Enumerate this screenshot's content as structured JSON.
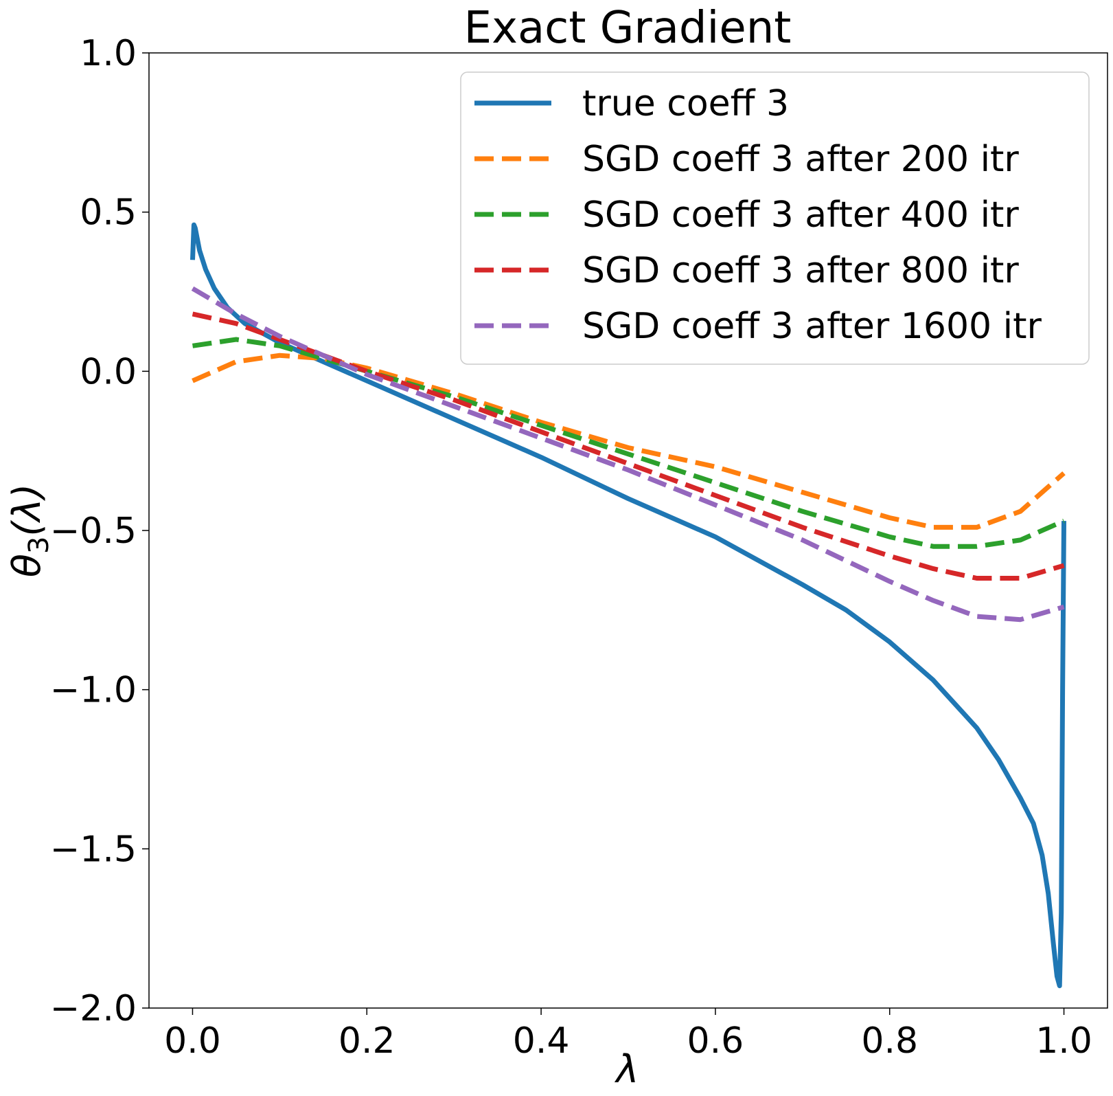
{
  "chart_data": {
    "type": "line",
    "title": "Exact Gradient",
    "xlabel": "λ",
    "ylabel": "θ3(λ)",
    "ylabel_main": "θ",
    "ylabel_sub": "3",
    "ylabel_arg": "(λ)",
    "xlim": [
      -0.05,
      1.05
    ],
    "ylim": [
      -2.0,
      1.0
    ],
    "xticks": [
      0.0,
      0.2,
      0.4,
      0.6,
      0.8,
      1.0
    ],
    "xtick_labels": [
      "0.0",
      "0.2",
      "0.4",
      "0.6",
      "0.8",
      "1.0"
    ],
    "yticks": [
      1.0,
      0.5,
      0.0,
      -0.5,
      -1.0,
      -1.5,
      -2.0
    ],
    "ytick_labels": [
      "1.0",
      "0.5",
      "0.0",
      "−0.5",
      "−1.0",
      "−1.5",
      "−2.0"
    ],
    "grid": false,
    "legend_position": "top-right",
    "series": [
      {
        "name": "true coeff 3",
        "color": "#1f77b4",
        "style": "solid",
        "x": [
          0.0,
          0.0015,
          0.003,
          0.008,
          0.015,
          0.025,
          0.04,
          0.06,
          0.08,
          0.1,
          0.15,
          0.2,
          0.3,
          0.4,
          0.5,
          0.6,
          0.7,
          0.75,
          0.8,
          0.85,
          0.9,
          0.925,
          0.95,
          0.965,
          0.975,
          0.982,
          0.988,
          0.992,
          0.995,
          0.997,
          0.9985,
          1.0
        ],
        "y": [
          0.35,
          0.46,
          0.45,
          0.38,
          0.32,
          0.26,
          0.2,
          0.15,
          0.12,
          0.09,
          0.03,
          -0.03,
          -0.15,
          -0.27,
          -0.4,
          -0.52,
          -0.67,
          -0.75,
          -0.85,
          -0.97,
          -1.12,
          -1.22,
          -1.34,
          -1.42,
          -1.52,
          -1.64,
          -1.8,
          -1.9,
          -1.93,
          -1.7,
          -1.0,
          -0.47
        ]
      },
      {
        "name": "SGD coeff 3 after 200 itr",
        "color": "#ff7f0e",
        "style": "dashed",
        "x": [
          0.0,
          0.05,
          0.1,
          0.15,
          0.2,
          0.3,
          0.4,
          0.5,
          0.6,
          0.7,
          0.8,
          0.85,
          0.9,
          0.95,
          1.0
        ],
        "y": [
          -0.03,
          0.03,
          0.05,
          0.04,
          0.01,
          -0.07,
          -0.16,
          -0.24,
          -0.3,
          -0.38,
          -0.46,
          -0.49,
          -0.49,
          -0.44,
          -0.32
        ]
      },
      {
        "name": "SGD coeff 3 after 400 itr",
        "color": "#2ca02c",
        "style": "dashed",
        "x": [
          0.0,
          0.05,
          0.1,
          0.15,
          0.2,
          0.3,
          0.4,
          0.5,
          0.6,
          0.7,
          0.8,
          0.85,
          0.9,
          0.95,
          1.0
        ],
        "y": [
          0.08,
          0.1,
          0.08,
          0.04,
          0.0,
          -0.08,
          -0.17,
          -0.26,
          -0.35,
          -0.44,
          -0.52,
          -0.55,
          -0.55,
          -0.53,
          -0.47
        ]
      },
      {
        "name": "SGD coeff 3 after 800 itr",
        "color": "#d62728",
        "style": "dashed",
        "x": [
          0.0,
          0.05,
          0.1,
          0.15,
          0.2,
          0.3,
          0.4,
          0.5,
          0.6,
          0.7,
          0.8,
          0.85,
          0.9,
          0.95,
          1.0
        ],
        "y": [
          0.18,
          0.15,
          0.1,
          0.05,
          0.0,
          -0.09,
          -0.19,
          -0.29,
          -0.39,
          -0.49,
          -0.58,
          -0.62,
          -0.65,
          -0.65,
          -0.61
        ]
      },
      {
        "name": "SGD coeff 3 after 1600 itr",
        "color": "#9467bd",
        "style": "dashed",
        "x": [
          0.0,
          0.05,
          0.1,
          0.15,
          0.2,
          0.3,
          0.4,
          0.5,
          0.6,
          0.7,
          0.8,
          0.85,
          0.9,
          0.95,
          1.0
        ],
        "y": [
          0.26,
          0.18,
          0.11,
          0.05,
          -0.01,
          -0.11,
          -0.21,
          -0.31,
          -0.42,
          -0.53,
          -0.66,
          -0.72,
          -0.77,
          -0.78,
          -0.74
        ]
      }
    ]
  }
}
